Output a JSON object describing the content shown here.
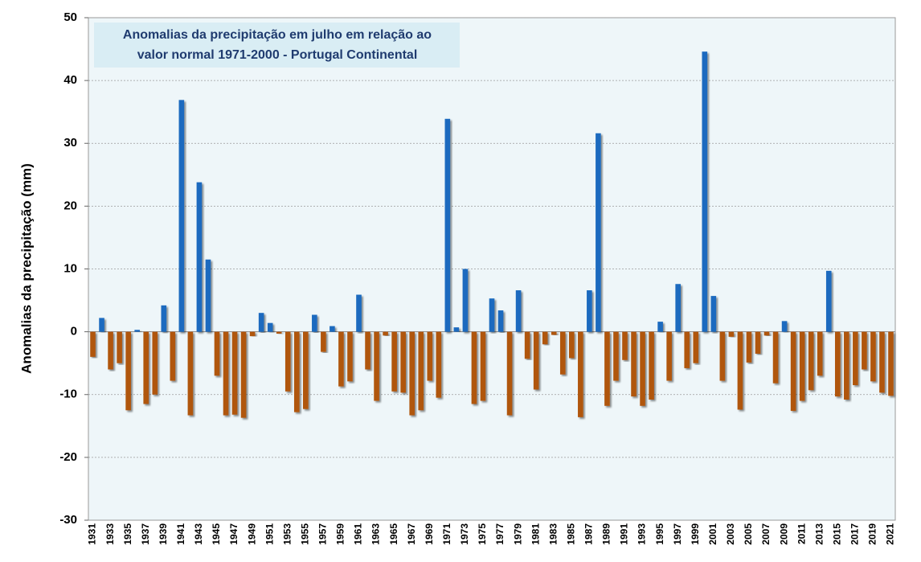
{
  "chart_data": {
    "type": "bar",
    "title": [
      "Anomalias da precipitação em julho em relação ao",
      "valor normal  1971-2000 - Portugal Continental"
    ],
    "y_label": "Anomalias da precipitação (mm)",
    "categories": [
      "1931",
      null,
      "1933",
      null,
      "1935",
      null,
      "1937",
      null,
      "1939",
      null,
      "1941",
      null,
      "1943",
      null,
      "1945",
      null,
      "1947",
      null,
      "1949",
      null,
      "1951",
      null,
      "1953",
      null,
      "1955",
      null,
      "1957",
      null,
      "1959",
      null,
      "1961",
      null,
      "1963",
      null,
      "1965",
      null,
      "1967",
      null,
      "1969",
      null,
      "1971",
      null,
      "1973",
      null,
      "1975",
      null,
      "1977",
      null,
      "1979",
      null,
      "1981",
      null,
      "1983",
      null,
      "1985",
      null,
      "1987",
      null,
      "1989",
      null,
      "1991",
      null,
      "1993",
      null,
      "1995",
      null,
      "1997",
      null,
      "1999",
      null,
      "2001",
      null,
      "2003",
      null,
      "2005",
      null,
      "2007",
      null,
      "2009",
      null,
      "2011",
      null,
      "2013",
      null,
      "2015",
      null,
      "2017",
      null,
      "2019",
      null,
      "2021"
    ],
    "values": [
      -4,
      2.2,
      -6,
      -5,
      -12.5,
      0.3,
      -11.5,
      -10,
      4.2,
      -7.8,
      36.9,
      -13.3,
      23.8,
      11.5,
      -7,
      -13.3,
      -13.2,
      -13.7,
      -0.7,
      3.0,
      1.4,
      -0.3,
      -9.5,
      -12.8,
      -12.3,
      2.7,
      -3.2,
      0.9,
      -8.7,
      -7.9,
      5.9,
      -6,
      -11,
      -0.6,
      -9.5,
      -9.7,
      -13.3,
      -12.5,
      -7.8,
      -10.5,
      33.9,
      0.7,
      10,
      -11.5,
      -11,
      5.3,
      3.4,
      -13.3,
      6.6,
      -4.3,
      -9.2,
      -2,
      -0.5,
      -6.8,
      -4.2,
      -13.6,
      6.6,
      31.6,
      -11.8,
      -7.8,
      -4.5,
      -10.3,
      -11.8,
      -10.8,
      1.6,
      -7.8,
      7.6,
      -5.8,
      -5,
      44.6,
      5.7,
      -7.8,
      -0.8,
      -12.4,
      -4.9,
      -3.5,
      -0.6,
      -8.2,
      1.7,
      -12.6,
      -11,
      -9.3,
      -7,
      9.7,
      -10.3,
      -10.8,
      -8.5,
      -6,
      -7.9,
      -9.7,
      -10.2
    ],
    "colors": {
      "positive": "#1a6bbf",
      "negative": "#b0560f"
    },
    "ylim": [
      -30,
      50
    ],
    "yticks": [
      -30,
      -20,
      -10,
      0,
      10,
      20,
      30,
      40,
      50
    ],
    "grid": true
  }
}
